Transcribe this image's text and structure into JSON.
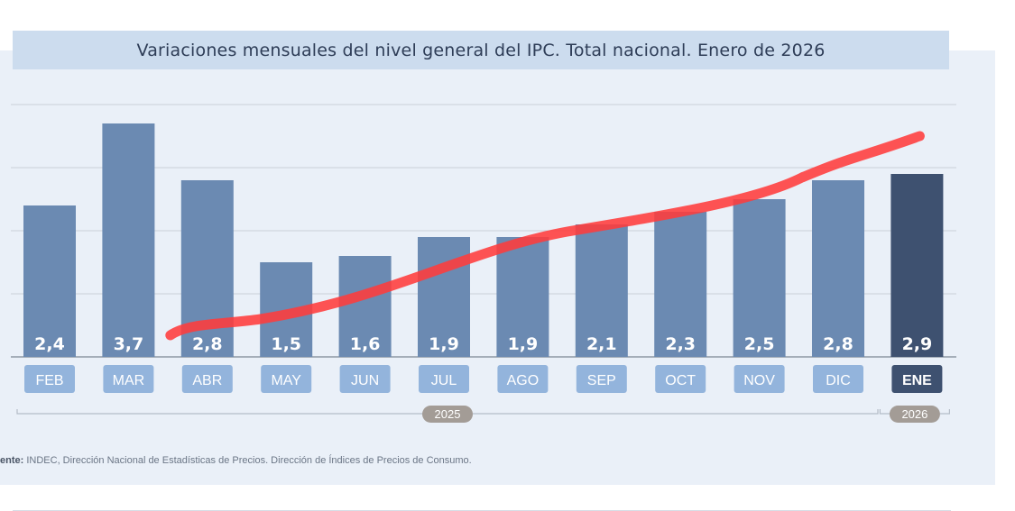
{
  "chart_data": {
    "type": "bar",
    "title": "Variaciones mensuales del nivel general del IPC. Total nacional. Enero de 2026",
    "categories": [
      "FEB",
      "MAR",
      "ABR",
      "MAY",
      "JUN",
      "JUL",
      "AGO",
      "SEP",
      "OCT",
      "NOV",
      "DIC",
      "ENE"
    ],
    "values": [
      2.4,
      3.7,
      2.8,
      1.5,
      1.6,
      1.9,
      1.9,
      2.1,
      2.3,
      2.5,
      2.8,
      2.9
    ],
    "value_labels": [
      "2,4",
      "3,7",
      "2,8",
      "1,5",
      "1,6",
      "1,9",
      "1,9",
      "2,1",
      "2,3",
      "2,5",
      "2,8",
      "2,9"
    ],
    "highlight_index": 11,
    "years": [
      {
        "label": "2025",
        "from": "FEB",
        "to": "DIC"
      },
      {
        "label": "2026",
        "from": "ENE",
        "to": "ENE"
      }
    ],
    "ylim": [
      0,
      4
    ],
    "grid": true,
    "colors": {
      "bar": "#6b8ab2",
      "bar_highlight": "#3e5170",
      "month_box": "#93b4dc",
      "month_box_highlight": "#3e5170",
      "year_pill": "#a39c96",
      "grid": "#c9cfd8",
      "baseline": "#8e97a4",
      "overlay_stroke": "#ff3b3b"
    },
    "overlay_annotation": {
      "kind": "hand-drawn upward trend stroke",
      "from_category": "ABR",
      "to_category": "ENE"
    }
  },
  "source": {
    "prefix": "ente:",
    "text": "INDEC, Dirección Nacional de Estadísticas de Precios. Dirección de Índices de Precios de Consumo."
  }
}
